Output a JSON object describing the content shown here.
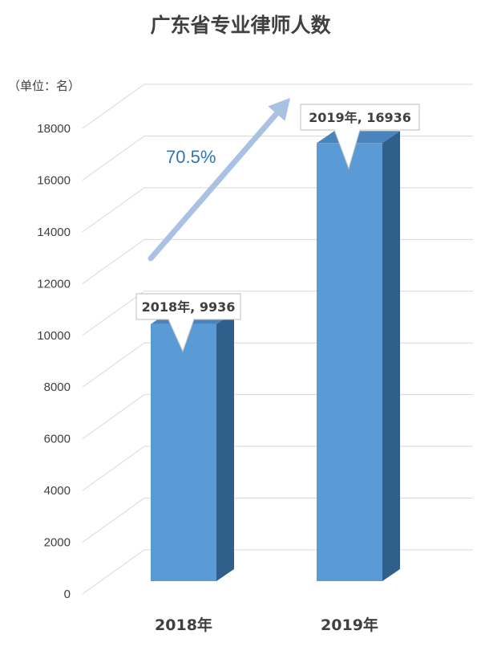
{
  "chart_data": {
    "type": "bar",
    "title": "广东省专业律师人数",
    "unit_label": "（单位：名）",
    "categories": [
      "2018年",
      "2019年"
    ],
    "values": [
      9936,
      16936
    ],
    "data_labels": [
      "2018年, 9936",
      "2019年, 16936"
    ],
    "ylim": [
      0,
      18000
    ],
    "yticks": [
      0,
      2000,
      4000,
      6000,
      8000,
      10000,
      12000,
      14000,
      16000,
      18000
    ],
    "grid": true,
    "legend": "none",
    "annotation": "70.5%",
    "colors": {
      "bar_front": "#5b9bd5",
      "bar_side": "#2f5f8a",
      "bar_top": "#4a84bd",
      "gridline": "#d9d9d9",
      "arrow": "#a9c1e3",
      "annotation": "#2e75b6"
    }
  }
}
